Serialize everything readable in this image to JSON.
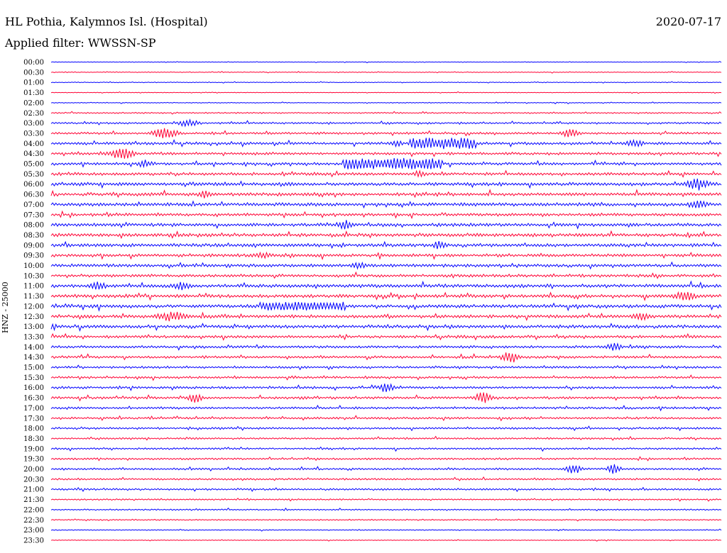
{
  "header": {
    "title": "HL Pothia, Kalymnos Isl. (Hospital)",
    "date": "2020-07-17",
    "filter": "Applied filter: WWSSN-SP"
  },
  "chart_data": {
    "type": "line",
    "title": "HL Pothia, Kalymnos Isl. (Hospital)",
    "ylabel": "HNZ - 25000",
    "trace_colors": [
      "#0000ff",
      "#ff0033"
    ],
    "row_labels": [
      "00:00",
      "00:30",
      "01:00",
      "01:30",
      "02:00",
      "02:30",
      "03:00",
      "03:30",
      "04:00",
      "04:30",
      "05:00",
      "05:30",
      "06:00",
      "06:30",
      "07:00",
      "07:30",
      "08:00",
      "08:30",
      "09:00",
      "09:30",
      "10:00",
      "10:30",
      "11:00",
      "11:30",
      "12:00",
      "12:30",
      "13:00",
      "13:30",
      "14:00",
      "14:30",
      "15:00",
      "15:30",
      "16:00",
      "16:30",
      "17:00",
      "17:30",
      "18:00",
      "18:30",
      "19:00",
      "19:30",
      "20:00",
      "20:30",
      "21:00",
      "21:30",
      "22:00",
      "22:30",
      "23:00",
      "23:30"
    ],
    "row_noise_amplitude": [
      0.3,
      0.4,
      0.4,
      0.35,
      0.45,
      0.7,
      1.0,
      1.2,
      1.5,
      1.4,
      1.4,
      1.6,
      1.8,
      1.8,
      1.8,
      1.6,
      1.8,
      1.8,
      1.8,
      1.7,
      1.7,
      1.6,
      1.8,
      1.8,
      1.8,
      1.8,
      1.7,
      1.5,
      1.4,
      1.3,
      1.2,
      1.2,
      1.3,
      1.3,
      1.2,
      1.1,
      1.1,
      1.0,
      1.0,
      1.0,
      1.1,
      1.0,
      1.0,
      0.8,
      0.7,
      0.6,
      0.5,
      0.4
    ],
    "events": [
      {
        "row": 6,
        "x": 0.205,
        "amp": 6,
        "w": 0.015
      },
      {
        "row": 7,
        "x": 0.17,
        "amp": 8,
        "w": 0.02
      },
      {
        "row": 7,
        "x": 0.775,
        "amp": 6,
        "w": 0.015
      },
      {
        "row": 8,
        "x": 0.515,
        "amp": 5,
        "w": 0.01
      },
      {
        "row": 8,
        "x": 0.585,
        "amp": 8,
        "w": 0.05,
        "flat": true
      },
      {
        "row": 8,
        "x": 0.87,
        "amp": 6,
        "w": 0.015
      },
      {
        "row": 9,
        "x": 0.105,
        "amp": 9,
        "w": 0.02
      },
      {
        "row": 10,
        "x": 0.14,
        "amp": 6,
        "w": 0.012
      },
      {
        "row": 10,
        "x": 0.51,
        "amp": 8,
        "w": 0.075,
        "flat": true
      },
      {
        "row": 11,
        "x": 0.55,
        "amp": 5,
        "w": 0.012
      },
      {
        "row": 12,
        "x": 0.965,
        "amp": 9,
        "w": 0.018
      },
      {
        "row": 13,
        "x": 0.23,
        "amp": 6,
        "w": 0.012
      },
      {
        "row": 14,
        "x": 0.965,
        "amp": 7,
        "w": 0.016
      },
      {
        "row": 16,
        "x": 0.44,
        "amp": 7,
        "w": 0.012
      },
      {
        "row": 18,
        "x": 0.58,
        "amp": 6,
        "w": 0.012
      },
      {
        "row": 19,
        "x": 0.315,
        "amp": 5,
        "w": 0.015
      },
      {
        "row": 20,
        "x": 0.46,
        "amp": 5,
        "w": 0.015
      },
      {
        "row": 22,
        "x": 0.07,
        "amp": 6,
        "w": 0.014
      },
      {
        "row": 22,
        "x": 0.195,
        "amp": 6,
        "w": 0.014
      },
      {
        "row": 23,
        "x": 0.945,
        "amp": 7,
        "w": 0.018
      },
      {
        "row": 24,
        "x": 0.375,
        "amp": 6,
        "w": 0.065,
        "flat": true
      },
      {
        "row": 25,
        "x": 0.18,
        "amp": 7,
        "w": 0.025
      },
      {
        "row": 25,
        "x": 0.88,
        "amp": 6,
        "w": 0.015
      },
      {
        "row": 26,
        "x": 0.0,
        "amp": 6,
        "w": 0.01
      },
      {
        "row": 28,
        "x": 0.84,
        "amp": 6,
        "w": 0.012
      },
      {
        "row": 29,
        "x": 0.685,
        "amp": 9,
        "w": 0.015
      },
      {
        "row": 32,
        "x": 0.5,
        "amp": 7,
        "w": 0.012
      },
      {
        "row": 33,
        "x": 0.215,
        "amp": 7,
        "w": 0.012
      },
      {
        "row": 33,
        "x": 0.645,
        "amp": 8,
        "w": 0.015
      },
      {
        "row": 40,
        "x": 0.78,
        "amp": 7,
        "w": 0.012
      },
      {
        "row": 40,
        "x": 0.84,
        "amp": 8,
        "w": 0.01
      }
    ]
  }
}
